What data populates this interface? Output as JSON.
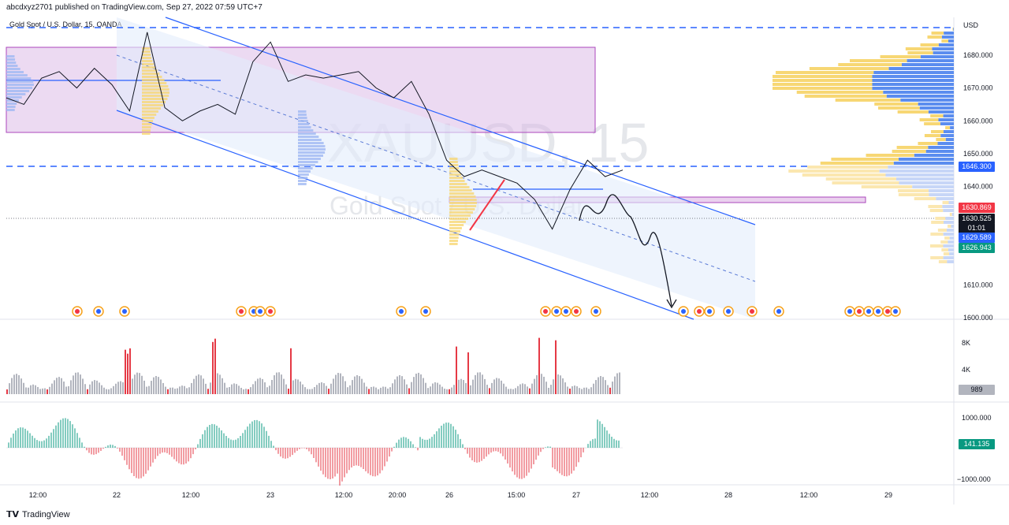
{
  "header": {
    "published": "abcdxyz2701 published on TradingView.com, Sep 27, 2022 07:59 UTC+7"
  },
  "symbol": {
    "line": "Gold Spot / U.S. Dollar, 15, OANDA",
    "watermark_ticker": "XAUUSD, 15",
    "watermark_name": "Gold Spot / U.S. Dollar"
  },
  "footer": {
    "brand": "TradingView"
  },
  "colors": {
    "up": "#089981",
    "down": "#f23645",
    "channel": "#2962ff",
    "zone_fill": "#e1bee7",
    "zone_border": "#ab47bc",
    "profile_yellow": "#f7d774",
    "profile_blue": "#5b8def",
    "volume_gray": "#b2b5be",
    "volume_red": "#e53945"
  },
  "chart_data": [
    {
      "type": "line",
      "title": "Gold Spot / U.S. Dollar, 15, OANDA",
      "x_ticks": [
        "12:00",
        "22",
        "12:00",
        "23",
        "12:00",
        "20:00",
        "26",
        "15:00",
        "27",
        "12:00",
        "28",
        "12:00",
        "29"
      ],
      "y_unit": "USD",
      "y_ticks": [
        1680.0,
        1670.0,
        1660.0,
        1650.0,
        1640.0,
        1610.0,
        1600.0
      ],
      "ylim": [
        1600,
        1690
      ],
      "price_labels": {
        "resistance": "1646.300",
        "high": "1630.869",
        "last": "1630.525",
        "countdown": "01:01",
        "low": "1629.589",
        "support": "1626.943"
      },
      "series": [
        {
          "name": "XAUUSD",
          "x": [
            0,
            4,
            8,
            12,
            16,
            20,
            24,
            28,
            32,
            36,
            40,
            44,
            48,
            52,
            56,
            60,
            64,
            68,
            72,
            76,
            80,
            84,
            88,
            92,
            96,
            100,
            104,
            108,
            112,
            116,
            120,
            124,
            128,
            132,
            136,
            140
          ],
          "values": [
            1667,
            1665,
            1673,
            1675,
            1670,
            1676,
            1671,
            1663,
            1687,
            1664,
            1660,
            1663,
            1665,
            1662,
            1678,
            1684,
            1672,
            1674,
            1673,
            1674,
            1675,
            1670,
            1667,
            1672,
            1662,
            1648,
            1643,
            1645,
            1643,
            1641,
            1636,
            1627,
            1639,
            1648,
            1643,
            1645
          ]
        }
      ]
    },
    {
      "type": "bar",
      "y_ticks": [
        "8K",
        "4K"
      ],
      "last_value": "989"
    },
    {
      "type": "bar",
      "y_ticks": [
        "1000.000",
        "−1000.000"
      ],
      "last_value": "141.135"
    }
  ]
}
